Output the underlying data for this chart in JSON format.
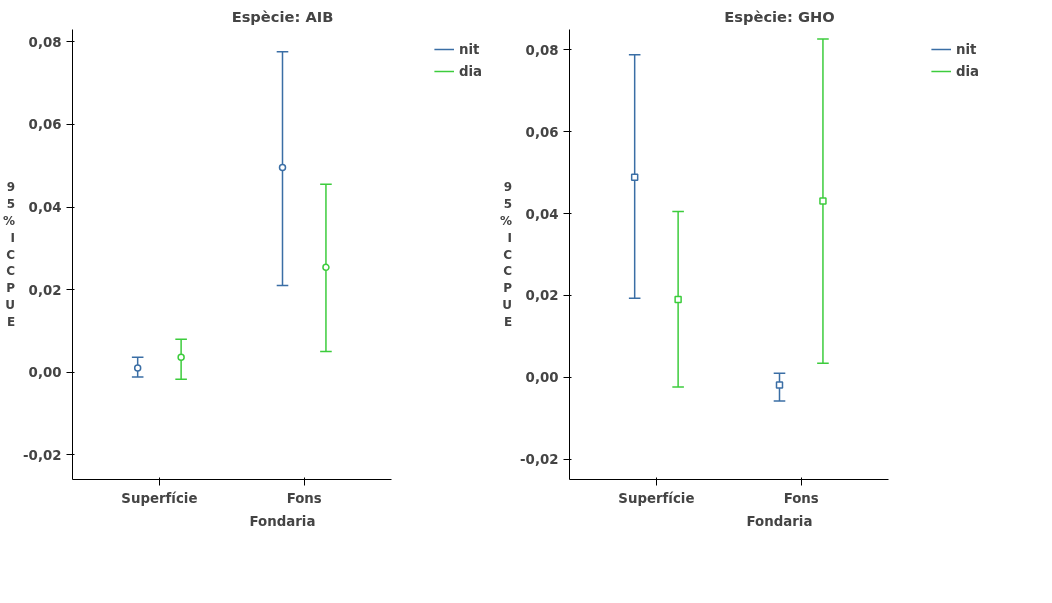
{
  "chart_data": [
    {
      "type": "scatter",
      "title": "Espècie: AIB",
      "xlabel": "Fondaria",
      "ylabel": "95% IC CPUE",
      "categories": [
        "Superfície",
        "Fons"
      ],
      "ylim": [
        -0.026,
        0.083
      ],
      "yticks": [
        {
          "value": -0.02,
          "label": "-0,02"
        },
        {
          "value": 0,
          "label": "0,00"
        },
        {
          "value": 0.02,
          "label": "0,02"
        },
        {
          "value": 0.04,
          "label": "0,04"
        },
        {
          "value": 0.06,
          "label": "0,06"
        },
        {
          "value": 0.08,
          "label": "0,08"
        }
      ],
      "grid": false,
      "legend": "top right",
      "marker": "circle",
      "series": [
        {
          "name": "nit",
          "color": "#3a6ea5",
          "values": [
            0.001,
            0.0496
          ],
          "errors": [
            [
              -0.0012,
              0.0036
            ],
            [
              0.021,
              0.0776
            ]
          ]
        },
        {
          "name": "dia",
          "color": "#3ccc3c",
          "values": [
            0.0036,
            0.0254
          ],
          "errors": [
            [
              -0.0017,
              0.008
            ],
            [
              0.005,
              0.0455
            ]
          ]
        }
      ]
    },
    {
      "type": "scatter",
      "title": "Espècie: GHO",
      "xlabel": "Fondaria",
      "ylabel": "95% IC CPUE",
      "categories": [
        "Superfície",
        "Fons"
      ],
      "ylim": [
        -0.025,
        0.085
      ],
      "yticks": [
        {
          "value": -0.02,
          "label": "-0,02"
        },
        {
          "value": 0,
          "label": "0,00"
        },
        {
          "value": 0.02,
          "label": "0,02"
        },
        {
          "value": 0.04,
          "label": "0,04"
        },
        {
          "value": 0.06,
          "label": "0,06"
        },
        {
          "value": 0.08,
          "label": "0,08"
        }
      ],
      "grid": false,
      "legend": "top right",
      "marker": "square",
      "series": [
        {
          "name": "nit",
          "color": "#3a6ea5",
          "values": [
            0.0489,
            -0.0019
          ],
          "errors": [
            [
              0.0193,
              0.0788
            ],
            [
              -0.0058,
              0.001
            ]
          ]
        },
        {
          "name": "dia",
          "color": "#3ccc3c",
          "values": [
            0.019,
            0.0431
          ],
          "errors": [
            [
              -0.0024,
              0.0405
            ],
            [
              0.0034,
              0.0827
            ]
          ]
        }
      ]
    }
  ]
}
